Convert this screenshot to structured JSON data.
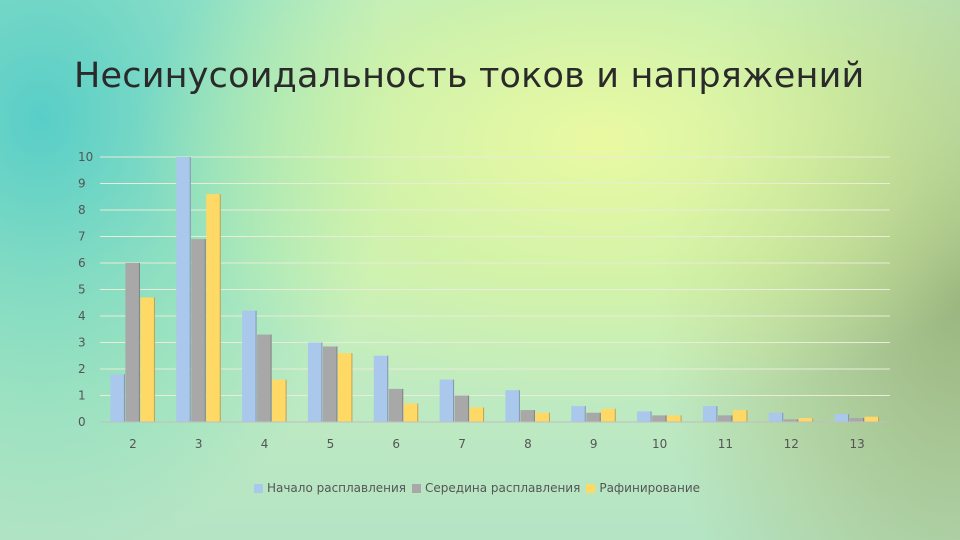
{
  "slide": {
    "title": "Несинусоидальность токов и напряжений"
  },
  "chart_data": {
    "type": "bar",
    "title": "",
    "xlabel": "",
    "ylabel": "",
    "categories": [
      "2",
      "3",
      "4",
      "5",
      "6",
      "7",
      "8",
      "9",
      "10",
      "11",
      "12",
      "13"
    ],
    "yticks": [
      "0",
      "1",
      "2",
      "3",
      "4",
      "5",
      "6",
      "7",
      "8",
      "9",
      "10"
    ],
    "ylim": [
      0,
      10
    ],
    "grid": true,
    "legend_position": "bottom",
    "series": [
      {
        "name": "Начало расплавления",
        "color": "#a9c8ec",
        "values": [
          1.8,
          10.0,
          4.2,
          3.0,
          2.5,
          1.6,
          1.2,
          0.6,
          0.4,
          0.6,
          0.35,
          0.3
        ]
      },
      {
        "name": "Середина расплавления",
        "color": "#a8a8a8",
        "values": [
          6.0,
          6.9,
          3.3,
          2.85,
          1.25,
          1.0,
          0.45,
          0.35,
          0.25,
          0.25,
          0.1,
          0.15
        ]
      },
      {
        "name": "Рафинирование",
        "color": "#ffd966",
        "values": [
          4.7,
          8.6,
          1.6,
          2.6,
          0.7,
          0.55,
          0.35,
          0.5,
          0.25,
          0.45,
          0.15,
          0.2
        ]
      }
    ]
  }
}
